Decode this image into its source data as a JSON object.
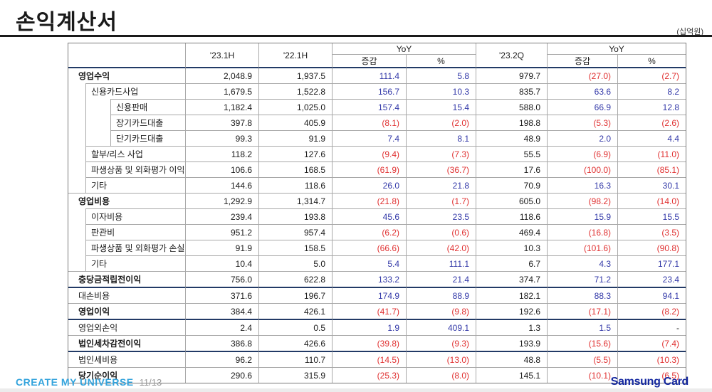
{
  "page": {
    "title": "손익계산서",
    "unit_note": "(십억원)"
  },
  "table": {
    "headers": {
      "col_2023_1h": "'23.1H",
      "col_2022_1h": "'22.1H",
      "yoy_1h": "YoY",
      "chg_1h": "증감",
      "pct_1h": "%",
      "col_2023_2q": "'23.2Q",
      "yoy_2q": "YoY",
      "chg_2q": "증감",
      "pct_2q": "%"
    },
    "rows": [
      {
        "label": "영업수익",
        "level": 0,
        "bold": true,
        "navy_divider_below": false,
        "values": [
          "2,048.9",
          "1,937.5",
          "111.4",
          "5.8",
          "979.7",
          "(27.0)",
          "(2.7)"
        ]
      },
      {
        "label": "신용카드사업",
        "level": 1,
        "bold": false,
        "navy_divider_below": false,
        "values": [
          "1,679.5",
          "1,522.8",
          "156.7",
          "10.3",
          "835.7",
          "63.6",
          "8.2"
        ]
      },
      {
        "label": "신용판매",
        "level": 2,
        "bold": false,
        "navy_divider_below": false,
        "values": [
          "1,182.4",
          "1,025.0",
          "157.4",
          "15.4",
          "588.0",
          "66.9",
          "12.8"
        ]
      },
      {
        "label": "장기카드대출",
        "level": 2,
        "bold": false,
        "navy_divider_below": false,
        "values": [
          "397.8",
          "405.9",
          "(8.1)",
          "(2.0)",
          "198.8",
          "(5.3)",
          "(2.6)"
        ]
      },
      {
        "label": "단기카드대출",
        "level": 2,
        "bold": false,
        "navy_divider_below": false,
        "values": [
          "99.3",
          "91.9",
          "7.4",
          "8.1",
          "48.9",
          "2.0",
          "4.4"
        ]
      },
      {
        "label": "할부/리스 사업",
        "level": 1,
        "bold": false,
        "navy_divider_below": false,
        "values": [
          "118.2",
          "127.6",
          "(9.4)",
          "(7.3)",
          "55.5",
          "(6.9)",
          "(11.0)"
        ]
      },
      {
        "label": "파생상품 및 외화평가 이익",
        "level": 1,
        "bold": false,
        "navy_divider_below": false,
        "values": [
          "106.6",
          "168.5",
          "(61.9)",
          "(36.7)",
          "17.6",
          "(100.0)",
          "(85.1)"
        ]
      },
      {
        "label": "기타",
        "level": 1,
        "bold": false,
        "navy_divider_below": false,
        "values": [
          "144.6",
          "118.6",
          "26.0",
          "21.8",
          "70.9",
          "16.3",
          "30.1"
        ]
      },
      {
        "label": "영업비용",
        "level": 0,
        "bold": true,
        "navy_divider_below": false,
        "values": [
          "1,292.9",
          "1,314.7",
          "(21.8)",
          "(1.7)",
          "605.0",
          "(98.2)",
          "(14.0)"
        ]
      },
      {
        "label": "이자비용",
        "level": 1,
        "bold": false,
        "navy_divider_below": false,
        "values": [
          "239.4",
          "193.8",
          "45.6",
          "23.5",
          "118.6",
          "15.9",
          "15.5"
        ]
      },
      {
        "label": "판관비",
        "level": 1,
        "bold": false,
        "navy_divider_below": false,
        "values": [
          "951.2",
          "957.4",
          "(6.2)",
          "(0.6)",
          "469.4",
          "(16.8)",
          "(3.5)"
        ]
      },
      {
        "label": "파생상품 및 외화평가 손실",
        "level": 1,
        "bold": false,
        "navy_divider_below": false,
        "values": [
          "91.9",
          "158.5",
          "(66.6)",
          "(42.0)",
          "10.3",
          "(101.6)",
          "(90.8)"
        ]
      },
      {
        "label": "기타",
        "level": 1,
        "bold": false,
        "navy_divider_below": false,
        "values": [
          "10.4",
          "5.0",
          "5.4",
          "111.1",
          "6.7",
          "4.3",
          "177.1"
        ]
      },
      {
        "label": "충당금적립전이익",
        "level": 0,
        "bold": true,
        "navy_divider_below": true,
        "values": [
          "756.0",
          "622.8",
          "133.2",
          "21.4",
          "374.7",
          "71.2",
          "23.4"
        ]
      },
      {
        "label": "대손비용",
        "level": 0,
        "bold": false,
        "navy_divider_below": false,
        "values": [
          "371.6",
          "196.7",
          "174.9",
          "88.9",
          "182.1",
          "88.3",
          "94.1"
        ]
      },
      {
        "label": "영업이익",
        "level": 0,
        "bold": true,
        "navy_divider_below": true,
        "values": [
          "384.4",
          "426.1",
          "(41.7)",
          "(9.8)",
          "192.6",
          "(17.1)",
          "(8.2)"
        ]
      },
      {
        "label": "영업외손익",
        "level": 0,
        "bold": false,
        "navy_divider_below": false,
        "values": [
          "2.4",
          "0.5",
          "1.9",
          "409.1",
          "1.3",
          "1.5",
          "-"
        ]
      },
      {
        "label": "법인세차감전이익",
        "level": 0,
        "bold": true,
        "navy_divider_below": true,
        "values": [
          "386.8",
          "426.6",
          "(39.8)",
          "(9.3)",
          "193.9",
          "(15.6)",
          "(7.4)"
        ]
      },
      {
        "label": "법인세비용",
        "level": 0,
        "bold": false,
        "navy_divider_below": false,
        "values": [
          "96.2",
          "110.7",
          "(14.5)",
          "(13.0)",
          "48.8",
          "(5.5)",
          "(10.3)"
        ]
      },
      {
        "label": "당기순이익",
        "level": 0,
        "bold": true,
        "navy_divider_below": false,
        "values": [
          "290.6",
          "315.9",
          "(25.3)",
          "(8.0)",
          "145.1",
          "(10.1)",
          "(6.5)"
        ]
      }
    ]
  },
  "footer": {
    "slogan": "CREATE MY UNIVERSE",
    "page_number": "11/13",
    "brand": "Samsung Card"
  },
  "colors": {
    "positive_value": "#3238a8",
    "negative_value": "#e03131",
    "navy_divider": "#223a66",
    "brand_blue": "#1428a0",
    "slogan_blue": "#33a3dc"
  }
}
